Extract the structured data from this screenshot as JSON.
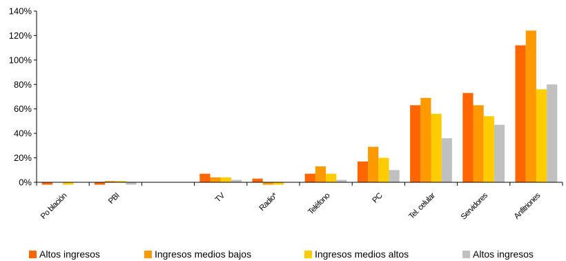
{
  "chart_data": {
    "type": "bar",
    "categories": [
      "Po blación",
      "PBI",
      "",
      "TV",
      "Radio*",
      "Teléfono",
      "PC",
      "Tel. celular",
      "Servidores",
      "Anfitriones"
    ],
    "series": [
      {
        "name": "Altos ingresos",
        "color": "#FF6600",
        "values": [
          -2,
          -2,
          0,
          7,
          3,
          7,
          17,
          63,
          73,
          112
        ]
      },
      {
        "name": "Ingresos medios bajos",
        "color": "#FF9900",
        "values": [
          0,
          1,
          0,
          4,
          -2,
          13,
          29,
          69,
          63,
          124
        ]
      },
      {
        "name": "Ingresos medios altos",
        "color": "#FFCC00",
        "values": [
          -2,
          1,
          0,
          4,
          -2,
          7,
          20,
          56,
          54,
          76
        ]
      },
      {
        "name": "Altos ingresos",
        "color": "#C0C0C0",
        "values": [
          0,
          -2,
          0,
          2,
          0,
          2,
          10,
          36,
          47,
          80
        ]
      }
    ],
    "yticks": [
      "0%",
      "20%",
      "40%",
      "60%",
      "80%",
      "100%",
      "120%",
      "140%"
    ],
    "ylim": [
      0,
      140
    ],
    "grid": false,
    "legend_position": "bottom"
  }
}
